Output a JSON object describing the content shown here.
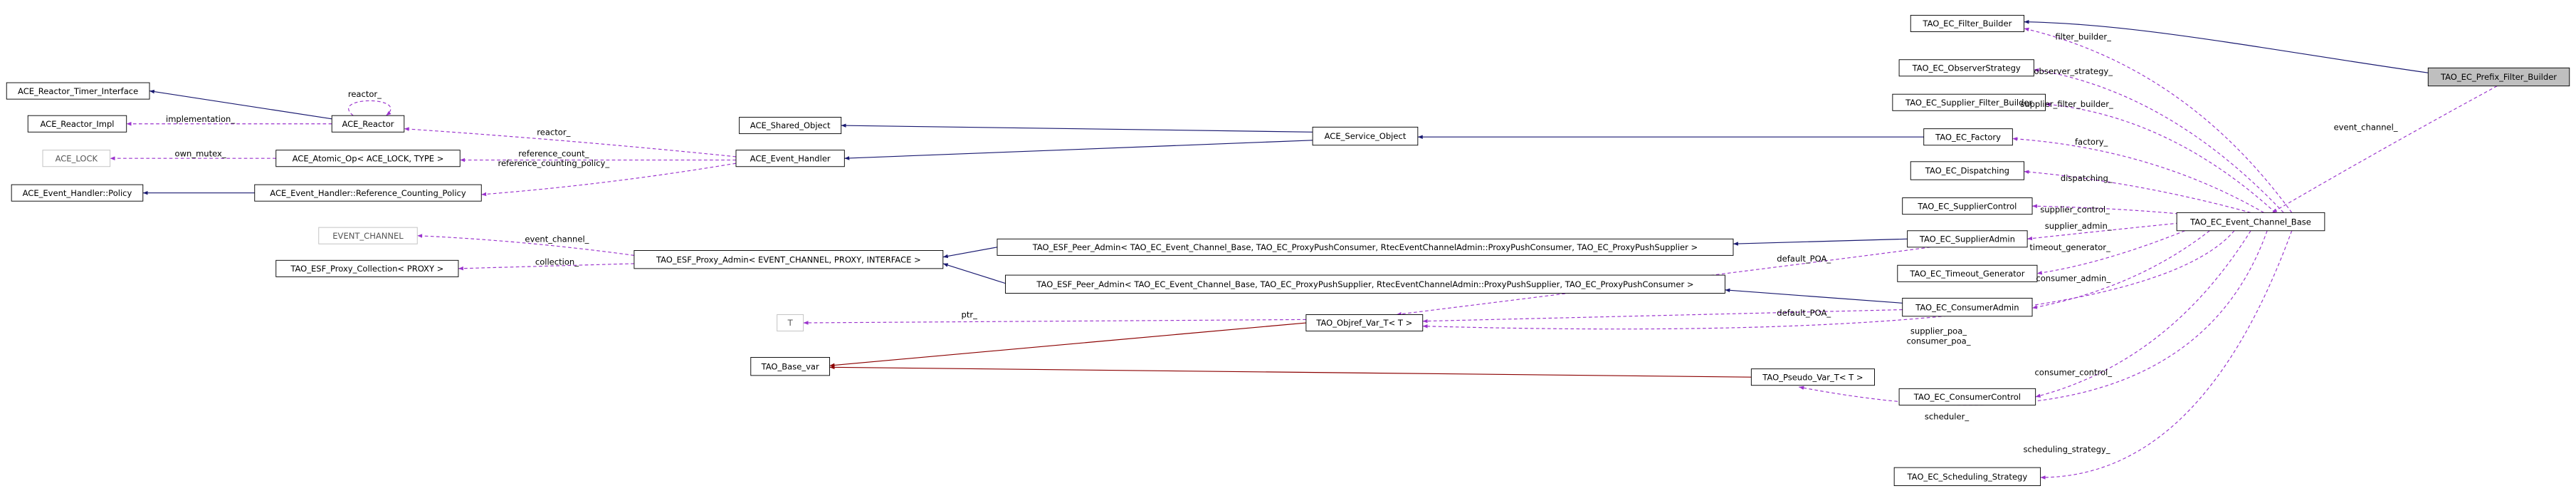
{
  "nodes": [
    {
      "label": "TAO_EC_Prefix_Filter_Builder"
    },
    {
      "label": "TAO_EC_Filter_Builder"
    },
    {
      "label": "TAO_EC_ObserverStrategy"
    },
    {
      "label": "TAO_EC_Supplier_Filter_Builder"
    },
    {
      "label": "TAO_EC_Factory"
    },
    {
      "label": "TAO_EC_Dispatching"
    },
    {
      "label": "TAO_EC_SupplierControl"
    },
    {
      "label": "TAO_EC_Event_Channel_Base"
    },
    {
      "label": "TAO_EC_SupplierAdmin"
    },
    {
      "label": "TAO_EC_Timeout_Generator"
    },
    {
      "label": "TAO_EC_ConsumerAdmin"
    },
    {
      "label": "TAO_EC_ConsumerControl"
    },
    {
      "label": "TAO_EC_Scheduling_Strategy"
    },
    {
      "label": "ACE_Service_Object"
    },
    {
      "label": "ACE_Shared_Object"
    },
    {
      "label": "ACE_Event_Handler"
    },
    {
      "label": "TAO_ESF_Peer_Admin< TAO_EC_Event_Channel_Base, TAO_EC_ProxyPushConsumer, RtecEventChannelAdmin::ProxyPushConsumer, TAO_EC_ProxyPushSupplier >"
    },
    {
      "label": "TAO_ESF_Peer_Admin< TAO_EC_Event_Channel_Base, TAO_EC_ProxyPushSupplier, RtecEventChannelAdmin::ProxyPushSupplier, TAO_EC_ProxyPushConsumer >"
    },
    {
      "label": "TAO_ESF_Proxy_Admin< EVENT_CHANNEL, PROXY, INTERFACE >"
    },
    {
      "label": "TAO_Objref_Var_T< T >"
    },
    {
      "label": "TAO_Pseudo_Var_T< T >"
    },
    {
      "label": "TAO_Base_var"
    },
    {
      "label": "T"
    },
    {
      "label": "EVENT_CHANNEL"
    },
    {
      "label": "TAO_ESF_Proxy_Collection< PROXY >"
    },
    {
      "label": "ACE_Reactor_Timer_Interface"
    },
    {
      "label": "ACE_Reactor_Impl"
    },
    {
      "label": "ACE_Reactor"
    },
    {
      "label": "ACE_LOCK"
    },
    {
      "label": "ACE_Atomic_Op< ACE_LOCK, TYPE >"
    },
    {
      "label": "ACE_Event_Handler::Policy"
    },
    {
      "label": "ACE_Event_Handler::Reference_Counting_Policy"
    }
  ],
  "edge_labels": [
    {
      "text": "filter_builder_"
    },
    {
      "text": "observer_strategy_"
    },
    {
      "text": "supplier_filter_builder_"
    },
    {
      "text": "factory_"
    },
    {
      "text": "dispatching_"
    },
    {
      "text": "supplier_control_"
    },
    {
      "text": "supplier_admin_"
    },
    {
      "text": "timeout_generator_"
    },
    {
      "text": "consumer_admin_"
    },
    {
      "text": "default_POA_"
    },
    {
      "text": "default_POA_"
    },
    {
      "text": "supplier_poa_\nconsumer_poa_"
    },
    {
      "text": "consumer_control_"
    },
    {
      "text": "scheduler_"
    },
    {
      "text": "scheduling_strategy_"
    },
    {
      "text": "event_channel_"
    },
    {
      "text": "event_channel_"
    },
    {
      "text": "collection_"
    },
    {
      "text": "ptr_"
    },
    {
      "text": "reactor_"
    },
    {
      "text": "reactor_"
    },
    {
      "text": "implementation_"
    },
    {
      "text": "own_mutex_"
    },
    {
      "text": "reference_count_\nreference_counting_policy_"
    }
  ]
}
